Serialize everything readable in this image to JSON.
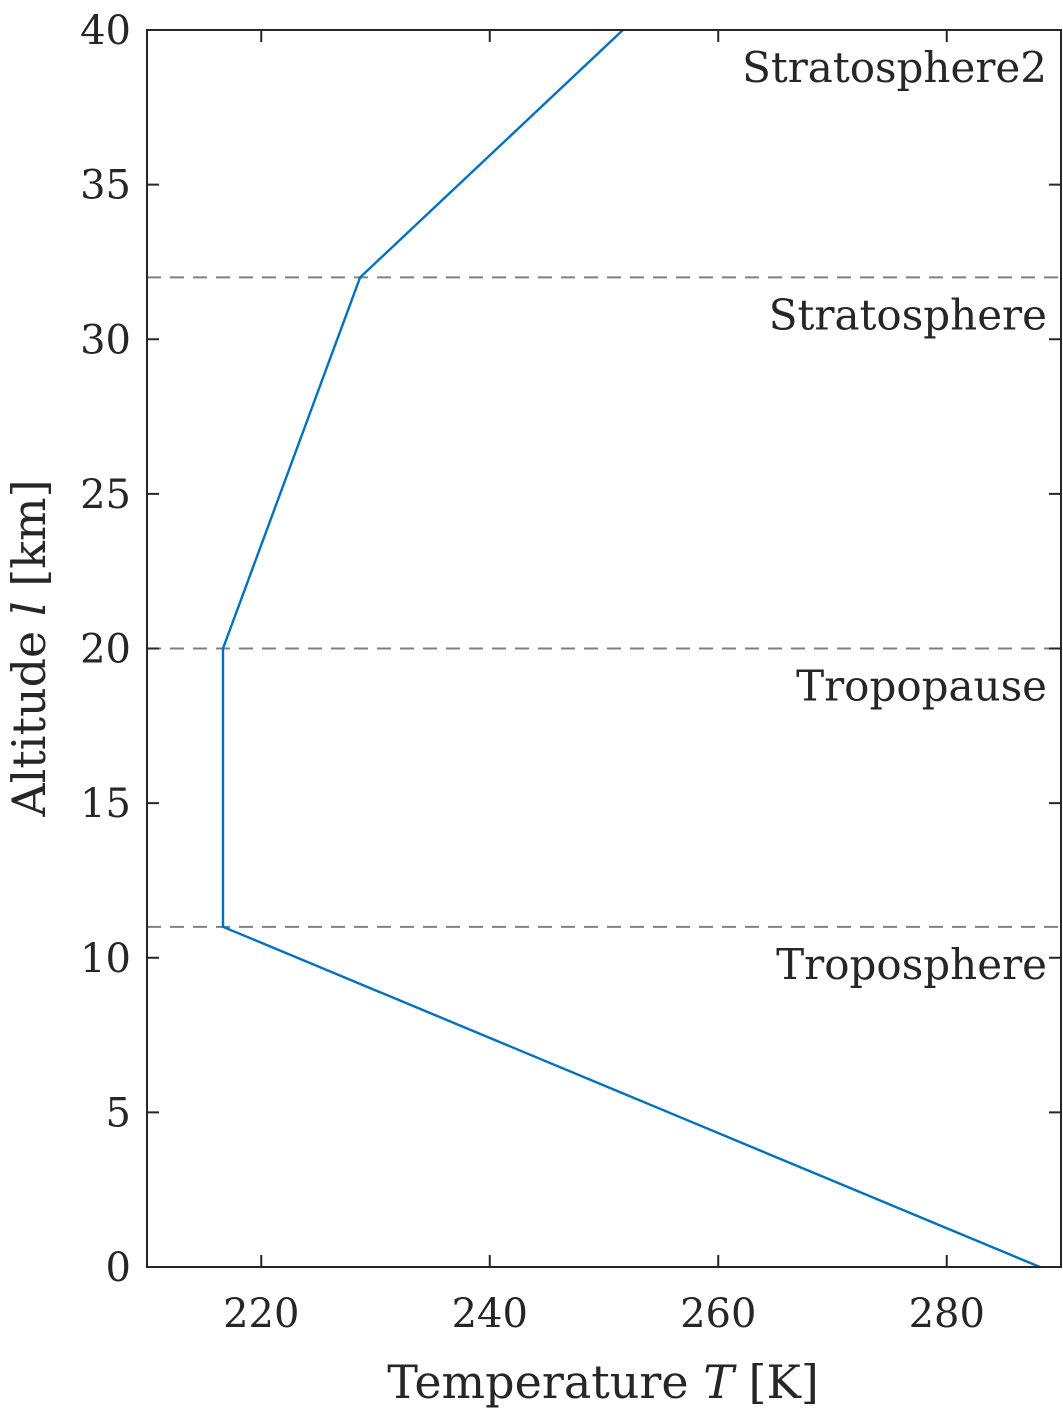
{
  "chart_data": {
    "type": "line",
    "xlabel": {
      "prefix": "Temperature ",
      "var": "T",
      "suffix": " [K]"
    },
    "ylabel": {
      "prefix": "Altitude ",
      "var": "l",
      "suffix": " [km]"
    },
    "xlim": [
      210,
      290
    ],
    "ylim": [
      0,
      40
    ],
    "xticks": [
      220,
      240,
      260,
      280
    ],
    "yticks": [
      0,
      5,
      10,
      15,
      20,
      25,
      30,
      35,
      40
    ],
    "grid": false,
    "series": [
      {
        "color": "#0072BD",
        "x": [
          288.15,
          216.65,
          216.65,
          228.65,
          251.65
        ],
        "y": [
          0,
          11,
          20,
          32,
          40
        ]
      }
    ],
    "reference_lines": [
      {
        "y": 11,
        "label": "Troposphere"
      },
      {
        "y": 20,
        "label": "Tropopause"
      },
      {
        "y": 32,
        "label": "Stratosphere"
      },
      {
        "y": 40,
        "label": "Stratosphere2"
      }
    ],
    "reference_line_color": "#808080",
    "axis_color": "#262626"
  }
}
